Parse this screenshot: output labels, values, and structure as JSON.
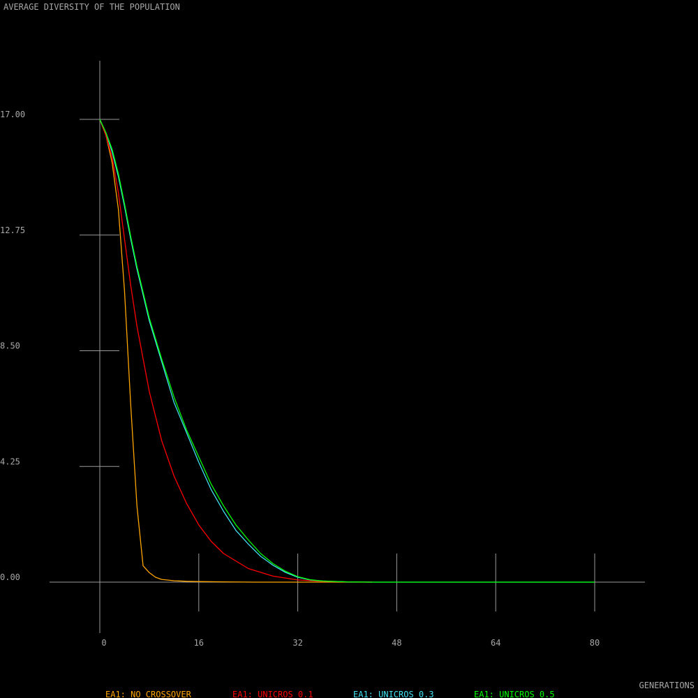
{
  "chart_data": {
    "type": "line",
    "title": "AVERAGE DIVERSITY OF THE POPULATION",
    "xlabel": "GENERATIONS",
    "ylabel": "",
    "xlim": [
      0,
      80
    ],
    "ylim": [
      0,
      17
    ],
    "x_ticks": [
      0,
      16,
      32,
      48,
      64,
      80
    ],
    "x_tick_labels": [
      "0",
      "16",
      "32",
      "48",
      "64",
      "80"
    ],
    "y_ticks": [
      0,
      4.25,
      8.5,
      12.75,
      17
    ],
    "y_tick_labels": [
      "0.00",
      "4.25",
      "8.50",
      "12.75",
      "17.00"
    ],
    "grid": false,
    "legend_position": "bottom",
    "series": [
      {
        "name": "EA1: NO CROSSOVER",
        "color": "#ffa500",
        "x": [
          0,
          1,
          2,
          3,
          4,
          5,
          6,
          7,
          8,
          9,
          10,
          12,
          14,
          16,
          20,
          25,
          30,
          35,
          40,
          44
        ],
        "y": [
          17.0,
          16.4,
          15.4,
          13.7,
          10.7,
          6.5,
          2.8,
          0.6,
          0.35,
          0.18,
          0.1,
          0.05,
          0.03,
          0.02,
          0.01,
          0.0,
          0.0,
          0.0,
          0.0,
          0.0
        ]
      },
      {
        "name": "EA1: UNICROS 0.1",
        "color": "#ff0000",
        "x": [
          0,
          1,
          2,
          3,
          4,
          5,
          6,
          8,
          10,
          12,
          14,
          16,
          18,
          20,
          24,
          28,
          32,
          36,
          40,
          44
        ],
        "y": [
          17.0,
          16.4,
          15.6,
          14.3,
          12.6,
          10.9,
          9.4,
          7.0,
          5.2,
          3.9,
          2.9,
          2.1,
          1.5,
          1.05,
          0.5,
          0.22,
          0.08,
          0.03,
          0.01,
          0.0
        ]
      },
      {
        "name": "EA1: UNICROS 0.3",
        "color": "#40e0f0",
        "x": [
          0,
          1,
          2,
          3,
          4,
          5,
          6,
          8,
          10,
          12,
          14,
          16,
          18,
          20,
          22,
          24,
          26,
          28,
          30,
          32,
          34,
          36,
          40,
          44,
          60,
          80
        ],
        "y": [
          17.0,
          16.5,
          15.8,
          14.9,
          13.8,
          12.6,
          11.5,
          9.6,
          8.1,
          6.6,
          5.5,
          4.4,
          3.4,
          2.6,
          1.9,
          1.4,
          0.95,
          0.62,
          0.36,
          0.18,
          0.08,
          0.04,
          0.01,
          0.0,
          0.0,
          0.0
        ]
      },
      {
        "name": "EA1: UNICROS 0.5",
        "color": "#00ff00",
        "x": [
          0,
          1,
          2,
          3,
          4,
          5,
          6,
          8,
          10,
          12,
          14,
          16,
          18,
          20,
          22,
          24,
          26,
          28,
          30,
          32,
          34,
          36,
          40,
          44,
          60,
          80
        ],
        "y": [
          17.0,
          16.5,
          15.9,
          15.0,
          13.9,
          12.7,
          11.6,
          9.7,
          8.2,
          6.8,
          5.6,
          4.6,
          3.6,
          2.8,
          2.1,
          1.55,
          1.05,
          0.68,
          0.4,
          0.2,
          0.09,
          0.04,
          0.01,
          0.0,
          0.0,
          0.0
        ]
      }
    ]
  },
  "colors": {
    "background": "#000000",
    "axes": "#9a9a9a",
    "text": "#a8a8a8"
  }
}
